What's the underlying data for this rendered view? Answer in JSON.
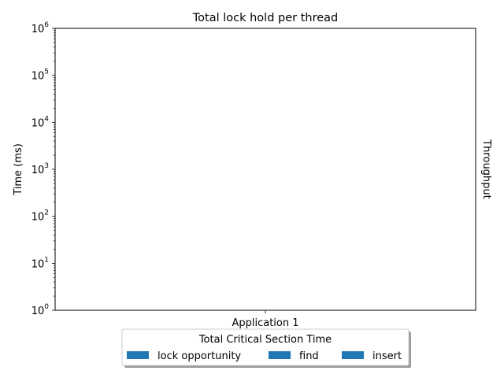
{
  "chart_data": {
    "type": "bar",
    "title": "Total lock hold per thread",
    "ylabel": "Time (ms)",
    "ylabel_right": "Throughput",
    "y_scale": "log",
    "ylim": [
      1,
      1000000
    ],
    "y_ticks": [
      {
        "base": "10",
        "exp": "0",
        "value": 1
      },
      {
        "base": "10",
        "exp": "1",
        "value": 10
      },
      {
        "base": "10",
        "exp": "2",
        "value": 100
      },
      {
        "base": "10",
        "exp": "3",
        "value": 1000
      },
      {
        "base": "10",
        "exp": "4",
        "value": 10000
      },
      {
        "base": "10",
        "exp": "5",
        "value": 100000
      },
      {
        "base": "10",
        "exp": "6",
        "value": 1000000
      }
    ],
    "categories": [
      "Application 1"
    ],
    "series": [
      {
        "name": "lock opportunity",
        "values": [
          null
        ],
        "color": "#1f77b4"
      },
      {
        "name": "find",
        "values": [
          null
        ],
        "color": "#1f77b4"
      },
      {
        "name": "insert",
        "values": [
          null
        ],
        "color": "#1f77b4"
      }
    ],
    "legend": {
      "title": "Total Critical Section Time",
      "placement": "bottom-center",
      "shadow": true
    },
    "grid": false
  }
}
